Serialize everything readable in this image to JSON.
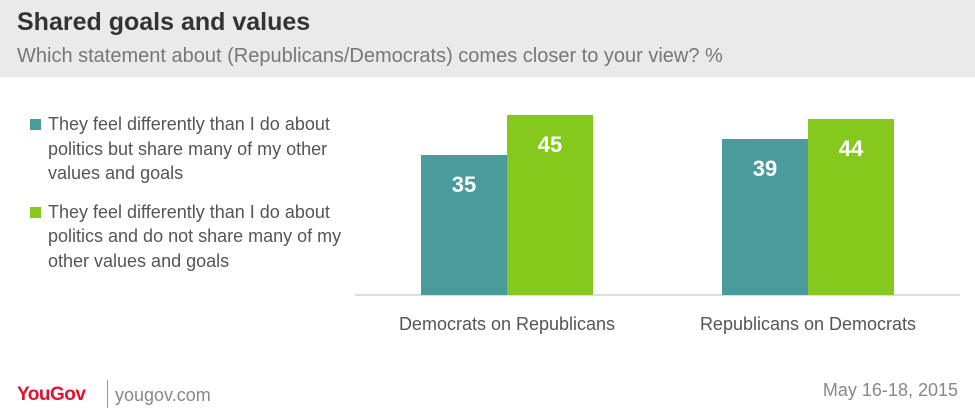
{
  "header": {
    "title": "Shared goals and values",
    "subtitle": "Which statement about (Republicans/Democrats) comes closer to your view? %"
  },
  "footer": {
    "logo": "YouGov",
    "site": "yougov.com",
    "date": "May 16-18, 2015"
  },
  "chart_data": {
    "type": "bar",
    "title": "Shared goals and values",
    "subtitle": "Which statement about (Republicans/Democrats) comes closer to your view? %",
    "categories": [
      "Democrats on Republicans",
      "Republicans on Democrats"
    ],
    "series": [
      {
        "name": "They feel differently than I do about politics but share many of my other values and goals",
        "color": "#4a9b9c",
        "values": [
          35,
          39
        ]
      },
      {
        "name": "They feel differently than I do about politics and do not share many of my other values and goals",
        "color": "#84c91c",
        "values": [
          45,
          44
        ]
      }
    ],
    "ylim": [
      0,
      45
    ],
    "grid": false,
    "legend_position": "left"
  }
}
